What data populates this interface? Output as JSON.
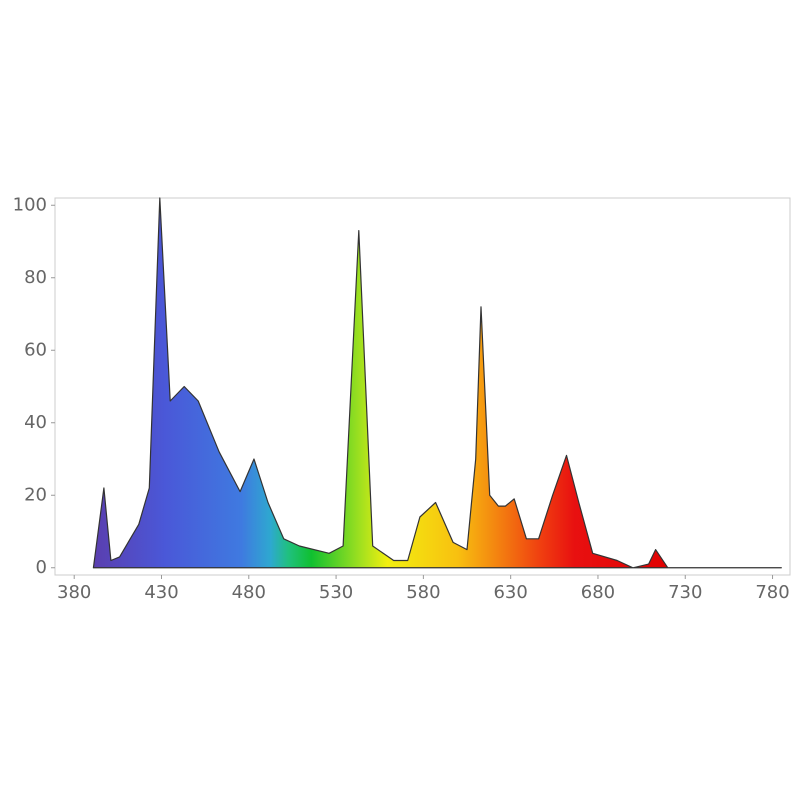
{
  "chart_data": {
    "type": "area",
    "x": [
      391,
      397,
      401,
      406,
      417,
      423,
      429,
      435,
      443,
      451,
      463,
      475,
      483,
      491,
      500,
      509,
      526,
      534,
      543,
      551,
      563,
      571,
      578,
      587,
      597,
      605,
      610,
      613,
      618,
      623,
      627,
      632,
      639,
      646,
      654,
      662,
      669,
      677,
      691,
      700,
      709,
      713,
      720,
      785
    ],
    "values": [
      0,
      22,
      2,
      3,
      12,
      22,
      102,
      46,
      50,
      46,
      32,
      21,
      30,
      18,
      8,
      6,
      4,
      6,
      93,
      6,
      2,
      2,
      14,
      18,
      7,
      5,
      30,
      72,
      20,
      17,
      17,
      19,
      8,
      8,
      20,
      31,
      18,
      4,
      2,
      0,
      1,
      5,
      0,
      0
    ],
    "xlim": [
      369,
      790
    ],
    "ylim": [
      -2,
      102
    ],
    "xticks": [
      380,
      430,
      480,
      530,
      580,
      630,
      680,
      730,
      780
    ],
    "yticks": [
      0,
      20,
      40,
      60,
      80,
      100
    ],
    "grid": false
  }
}
